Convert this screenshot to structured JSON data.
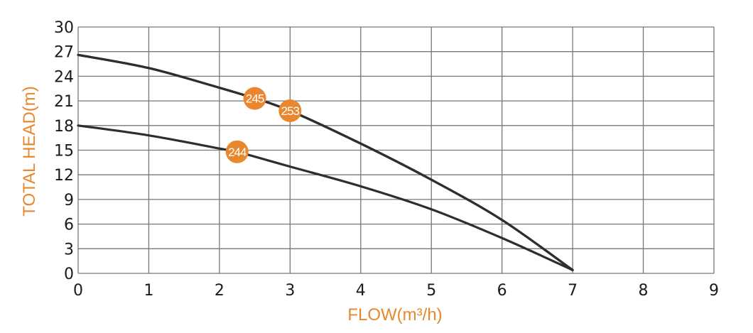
{
  "chart_data": {
    "type": "line",
    "xlabel": "FLOW(m³/h)",
    "ylabel": "TOTAL HEAD(m)",
    "xlim": [
      0,
      9
    ],
    "ylim": [
      0,
      30
    ],
    "x_ticks": [
      "0",
      "1",
      "2",
      "3",
      "4",
      "5",
      "6",
      "7",
      "8",
      "9"
    ],
    "y_ticks": [
      "0",
      "3",
      "6",
      "9",
      "12",
      "15",
      "18",
      "21",
      "24",
      "27",
      "30"
    ],
    "grid": true,
    "series": [
      {
        "name": "245",
        "x": [
          0,
          1,
          2,
          2.5,
          3,
          4,
          5,
          6,
          7
        ],
        "y": [
          26.6,
          25.0,
          22.6,
          21.3,
          19.8,
          15.8,
          11.4,
          6.5,
          0.4
        ]
      },
      {
        "name": "253",
        "x": [
          0,
          1,
          2,
          2.5,
          3,
          4,
          5,
          6,
          7
        ],
        "y": [
          26.6,
          25.0,
          22.6,
          21.3,
          19.8,
          15.8,
          11.4,
          6.5,
          0.4
        ]
      },
      {
        "name": "244",
        "x": [
          0,
          1,
          2,
          2.25,
          3,
          4,
          5,
          6,
          7
        ],
        "y": [
          18.0,
          16.8,
          15.2,
          14.8,
          13.0,
          10.6,
          7.8,
          4.3,
          0.4
        ]
      }
    ],
    "annotations": [
      {
        "text": "245",
        "x": 2.5,
        "y": 21.3
      },
      {
        "text": "253",
        "x": 3.0,
        "y": 19.8
      },
      {
        "text": "244",
        "x": 2.25,
        "y": 14.8
      }
    ],
    "colors": {
      "axis_label": "#E8872E",
      "badge": "#E8872E",
      "curve": "#2E2E2E",
      "grid": "#777777"
    }
  }
}
